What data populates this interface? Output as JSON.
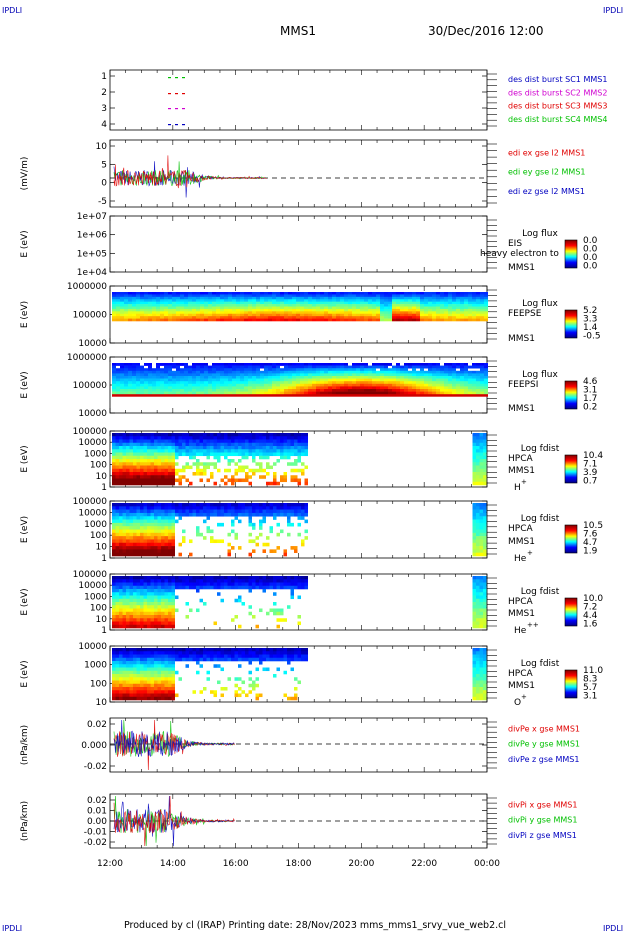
{
  "corners": {
    "tl": "IPDLI",
    "tr": "IPDLI",
    "bl": "IPDLI",
    "br": "IPDLI"
  },
  "header": {
    "title": "MMS1",
    "date": "30/Dec/2016 12:00"
  },
  "footer": {
    "text": "Produced by cl (IRAP)    Printing date: 28/Nov/2023    mms_mms1_srvy_vue_web2.cl"
  },
  "time_axis": {
    "ticks": [
      "12:00",
      "14:00",
      "16:00",
      "18:00",
      "20:00",
      "22:00",
      "00:00"
    ]
  },
  "colors": {
    "red": "#e00000",
    "green": "#00c000",
    "blue": "#0000c0",
    "magenta": "#d000d0",
    "black": "#000000"
  },
  "chart_data": [
    {
      "type": "line",
      "ylim": [
        0.5,
        4.5
      ],
      "yticks": [
        "1",
        "2",
        "3",
        "4"
      ],
      "series": [
        {
          "name": "des dist burst SC1 MMS1",
          "color": "#0000c0"
        },
        {
          "name": "des dist burst SC2 MMS2",
          "color": "#d000d0"
        },
        {
          "name": "des dist burst SC3 MMS3",
          "color": "#e00000"
        },
        {
          "name": "des dist burst SC4 MMS4",
          "color": "#00c000"
        }
      ]
    },
    {
      "type": "line",
      "ylabel": "(mV/m)",
      "ylim": [
        -6,
        11
      ],
      "yticks": [
        "10",
        "5",
        "0",
        "-5"
      ],
      "series": [
        {
          "name": "edi ex gse l2 MMS1",
          "color": "#e00000"
        },
        {
          "name": "edi ey gse l2 MMS1",
          "color": "#00c000"
        },
        {
          "name": "edi ez gse l2 MMS1",
          "color": "#0000c0"
        }
      ]
    },
    {
      "type": "heatmap",
      "ylabel": "E (eV)",
      "yticks": [
        "1e+07",
        "1e+06",
        "1e+05",
        "1e+04"
      ],
      "labels": [
        "EIS",
        "MMS1"
      ],
      "overlay": "heavy electron to",
      "cb_title": "Log flux",
      "cb_ticks": [
        "0.0",
        "0.0",
        "0.0",
        "0.0"
      ]
    },
    {
      "type": "heatmap",
      "ylabel": "E (eV)",
      "yticks": [
        "1000000",
        "100000",
        "10000"
      ],
      "labels": [
        "FEEPSE",
        "MMS1"
      ],
      "cb_title": "Log flux",
      "cb_ticks": [
        "5.2",
        "3.3",
        "1.4",
        "-0.5"
      ]
    },
    {
      "type": "heatmap",
      "ylabel": "E (eV)",
      "yticks": [
        "1000000",
        "100000",
        "10000"
      ],
      "labels": [
        "FEEPSI",
        "MMS1"
      ],
      "cb_title": "Log flux",
      "cb_ticks": [
        "4.6",
        "3.1",
        "1.7",
        "0.2"
      ]
    },
    {
      "type": "heatmap",
      "ylabel": "E (eV)",
      "yticks": [
        "100000",
        "10000",
        "1000",
        "100",
        "10",
        "1"
      ],
      "labels": [
        "HPCA",
        "MMS1"
      ],
      "species": "H",
      "sup": "+",
      "cb_title": "Log fdist",
      "cb_ticks": [
        "10.4",
        "7.1",
        "3.9",
        "0.7"
      ]
    },
    {
      "type": "heatmap",
      "ylabel": "E (eV)",
      "yticks": [
        "100000",
        "10000",
        "1000",
        "100",
        "10",
        "1"
      ],
      "labels": [
        "HPCA",
        "MMS1"
      ],
      "species": "He",
      "sup": "+",
      "cb_title": "Log fdist",
      "cb_ticks": [
        "10.5",
        "7.6",
        "4.7",
        "1.9"
      ]
    },
    {
      "type": "heatmap",
      "ylabel": "E (eV)",
      "yticks": [
        "100000",
        "10000",
        "1000",
        "100",
        "10",
        "1"
      ],
      "labels": [
        "HPCA",
        "MMS1"
      ],
      "species": "He",
      "sup": "++",
      "cb_title": "Log fdist",
      "cb_ticks": [
        "10.0",
        "7.2",
        "4.4",
        "1.6"
      ]
    },
    {
      "type": "heatmap",
      "ylabel": "E (eV)",
      "yticks": [
        "10000",
        "1000",
        "100",
        "10"
      ],
      "labels": [
        "HPCA",
        "MMS1"
      ],
      "species": "O",
      "sup": "+",
      "cb_title": "Log fdist",
      "cb_ticks": [
        "11.0",
        "8.3",
        "5.7",
        "3.1"
      ]
    },
    {
      "type": "line",
      "ylabel": "(nPa/km)",
      "ylim": [
        -0.03,
        0.03
      ],
      "yticks": [
        "0.02",
        "0.000",
        "-0.02"
      ],
      "series": [
        {
          "name": "divPe x gse MMS1",
          "color": "#e00000"
        },
        {
          "name": "divPe y gse MMS1",
          "color": "#00c000"
        },
        {
          "name": "divPe z gse MMS1",
          "color": "#0000c0"
        }
      ]
    },
    {
      "type": "line",
      "ylabel": "(nPa/km)",
      "ylim": [
        -0.025,
        0.025
      ],
      "yticks": [
        "0.02",
        "0.01",
        "0.00",
        "-0.01",
        "-0.02"
      ],
      "series": [
        {
          "name": "divPi x gse MMS1",
          "color": "#e00000"
        },
        {
          "name": "divPi y gse MMS1",
          "color": "#00c000"
        },
        {
          "name": "divPi z gse MMS1",
          "color": "#0000c0"
        }
      ]
    }
  ]
}
